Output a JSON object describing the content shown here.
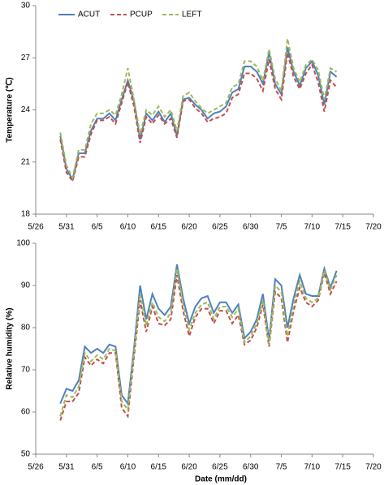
{
  "chart_data": [
    {
      "type": "line",
      "ylabel": "Temperature (℃)",
      "legend": "upper left",
      "x": [
        "5/30",
        "5/31",
        "6/1",
        "6/2",
        "6/3",
        "6/4",
        "6/5",
        "6/6",
        "6/7",
        "6/8",
        "6/9",
        "6/10",
        "6/11",
        "6/12",
        "6/13",
        "6/14",
        "6/15",
        "6/16",
        "6/17",
        "6/18",
        "6/19",
        "6/20",
        "6/21",
        "6/22",
        "6/23",
        "6/24",
        "6/25",
        "6/26",
        "6/27",
        "6/28",
        "6/29",
        "6/30",
        "7/1",
        "7/2",
        "7/3",
        "7/4",
        "7/5",
        "7/6",
        "7/7",
        "7/8",
        "7/9",
        "7/10",
        "7/11",
        "7/12",
        "7/13",
        "7/14"
      ],
      "xlim": [
        "5/26",
        "7/20"
      ],
      "xticks": [
        "5/26",
        "5/31",
        "6/5",
        "6/10",
        "6/15",
        "6/20",
        "6/25",
        "6/30",
        "7/5",
        "7/10",
        "7/15",
        "7/20"
      ],
      "ylim": [
        18,
        30
      ],
      "yticks": [
        18,
        21,
        24,
        27,
        30
      ],
      "series": [
        {
          "name": "ACUT",
          "color": "#4f81bd",
          "dashed": false,
          "values": [
            22.5,
            20.6,
            20.0,
            21.5,
            21.5,
            22.8,
            23.5,
            23.5,
            23.8,
            23.4,
            24.6,
            25.7,
            24.5,
            22.3,
            23.8,
            23.4,
            23.9,
            23.3,
            23.8,
            22.5,
            24.6,
            24.7,
            24.3,
            24.0,
            23.5,
            23.8,
            23.9,
            24.2,
            25.0,
            25.2,
            26.5,
            26.5,
            26.2,
            25.5,
            27.3,
            25.5,
            24.9,
            27.6,
            26.2,
            25.4,
            26.4,
            26.8,
            26.0,
            24.3,
            26.2,
            25.9
          ]
        },
        {
          "name": "PCUP",
          "color": "#c0504d",
          "dashed": true,
          "values": [
            22.3,
            20.4,
            19.9,
            21.3,
            21.3,
            22.6,
            23.4,
            23.4,
            23.6,
            23.2,
            24.4,
            25.6,
            24.2,
            22.1,
            23.6,
            23.2,
            23.7,
            23.2,
            23.5,
            22.4,
            24.5,
            24.6,
            24.1,
            23.8,
            23.3,
            23.5,
            23.6,
            23.8,
            24.7,
            24.9,
            26.1,
            26.1,
            25.8,
            25.1,
            26.9,
            25.2,
            24.6,
            27.3,
            25.9,
            25.2,
            26.1,
            26.6,
            25.6,
            23.9,
            25.7,
            25.3
          ]
        },
        {
          "name": "LEFT",
          "color": "#9bbb59",
          "dashed": true,
          "values": [
            22.7,
            20.8,
            20.1,
            21.7,
            21.7,
            23.2,
            23.8,
            23.8,
            24.0,
            23.7,
            24.9,
            26.4,
            24.6,
            22.6,
            24.0,
            23.7,
            24.2,
            23.6,
            24.0,
            22.8,
            24.8,
            25.0,
            24.5,
            24.1,
            23.8,
            24.0,
            24.2,
            24.4,
            25.3,
            25.5,
            26.8,
            26.8,
            26.5,
            25.7,
            27.5,
            25.8,
            25.1,
            28.1,
            26.4,
            25.6,
            26.6,
            26.9,
            26.3,
            24.6,
            26.4,
            26.2
          ]
        }
      ]
    },
    {
      "type": "line",
      "ylabel": "Relative humidity (%)",
      "xlabel": "Date (mm/dd)",
      "x": [
        "5/30",
        "5/31",
        "6/1",
        "6/2",
        "6/3",
        "6/4",
        "6/5",
        "6/6",
        "6/7",
        "6/8",
        "6/9",
        "6/10",
        "6/11",
        "6/12",
        "6/13",
        "6/14",
        "6/15",
        "6/16",
        "6/17",
        "6/18",
        "6/19",
        "6/20",
        "6/21",
        "6/22",
        "6/23",
        "6/24",
        "6/25",
        "6/26",
        "6/27",
        "6/28",
        "6/29",
        "6/30",
        "7/1",
        "7/2",
        "7/3",
        "7/4",
        "7/5",
        "7/6",
        "7/7",
        "7/8",
        "7/9",
        "7/10",
        "7/11",
        "7/12",
        "7/13",
        "7/14"
      ],
      "xlim": [
        "5/26",
        "7/20"
      ],
      "xticks": [
        "5/26",
        "5/31",
        "6/5",
        "6/10",
        "6/15",
        "6/20",
        "6/25",
        "6/30",
        "7/5",
        "7/10",
        "7/15",
        "7/20"
      ],
      "ylim": [
        50,
        100
      ],
      "yticks": [
        50,
        60,
        70,
        80,
        90,
        100
      ],
      "series": [
        {
          "color": "#4f81bd",
          "dashed": false,
          "values": [
            62,
            65.5,
            65,
            67.5,
            75.5,
            74,
            75,
            74,
            76,
            75.5,
            64,
            62,
            75,
            90,
            82,
            88,
            84.5,
            83,
            85,
            95,
            87,
            81,
            85,
            87,
            87.5,
            83.5,
            86,
            86,
            83.5,
            85.5,
            77.5,
            79,
            82,
            88,
            77,
            91.5,
            90,
            80,
            87,
            92.5,
            88,
            87.5,
            87.5,
            94,
            89.5,
            93.5
          ]
        },
        {
          "color": "#c0504d",
          "dashed": true,
          "values": [
            58,
            62.5,
            62.5,
            64.5,
            73,
            71,
            72.5,
            71.5,
            74,
            74,
            61,
            59,
            73,
            86.5,
            79,
            85,
            81,
            80.5,
            82,
            92.5,
            84,
            78,
            82.5,
            84.5,
            84.5,
            81,
            84,
            84,
            81,
            83,
            76,
            77,
            80,
            85.5,
            75.5,
            88.5,
            87,
            76.5,
            84,
            89.5,
            86,
            85,
            86.5,
            93,
            88,
            91
          ]
        },
        {
          "color": "#9bbb59",
          "dashed": true,
          "values": [
            59,
            64,
            63.5,
            66,
            74,
            72,
            73.5,
            72.5,
            75,
            74.5,
            62.5,
            60.5,
            74,
            88,
            80.5,
            86,
            82.5,
            81.5,
            83.5,
            94,
            85.5,
            79.5,
            83.5,
            85.5,
            86,
            82,
            85,
            85,
            82.5,
            84.5,
            76.5,
            78,
            81,
            86.5,
            76,
            90,
            88.5,
            78,
            85.5,
            91,
            87,
            86,
            87,
            93.5,
            89,
            92.5
          ]
        }
      ]
    }
  ]
}
